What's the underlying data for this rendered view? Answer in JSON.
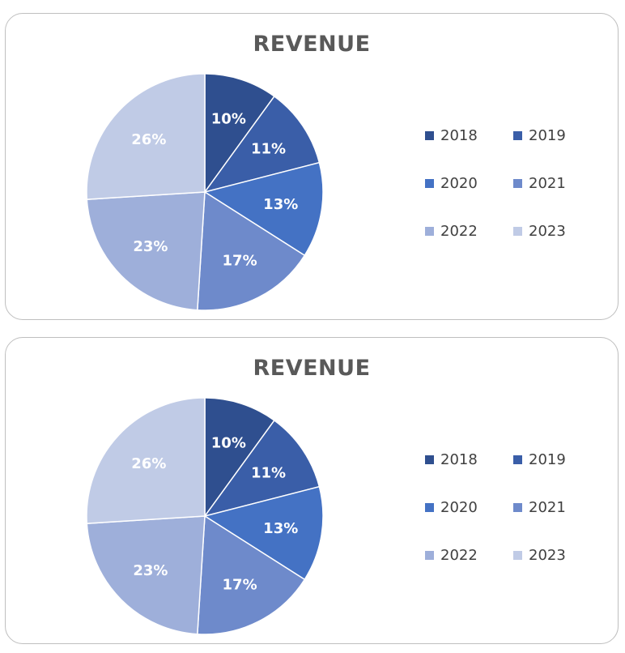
{
  "chart_data": [
    {
      "type": "pie",
      "title": "REVENUE",
      "categories": [
        "2018",
        "2019",
        "2020",
        "2021",
        "2022",
        "2023"
      ],
      "values": [
        10,
        11,
        13,
        17,
        23,
        26
      ],
      "labels": [
        "10%",
        "11%",
        "13%",
        "17%",
        "23%",
        "26%"
      ],
      "colors": [
        "#2f4f8f",
        "#3a5ea8",
        "#4472c4",
        "#6e8acb",
        "#9eafda",
        "#c0cbe6"
      ],
      "legend_position": "right"
    },
    {
      "type": "pie",
      "title": "REVENUE",
      "categories": [
        "2018",
        "2019",
        "2020",
        "2021",
        "2022",
        "2023"
      ],
      "values": [
        10,
        11,
        13,
        17,
        23,
        26
      ],
      "labels": [
        "10%",
        "11%",
        "13%",
        "17%",
        "23%",
        "26%"
      ],
      "colors": [
        "#2f4f8f",
        "#3a5ea8",
        "#4472c4",
        "#6e8acb",
        "#9eafda",
        "#c0cbe6"
      ],
      "legend_position": "right"
    }
  ]
}
